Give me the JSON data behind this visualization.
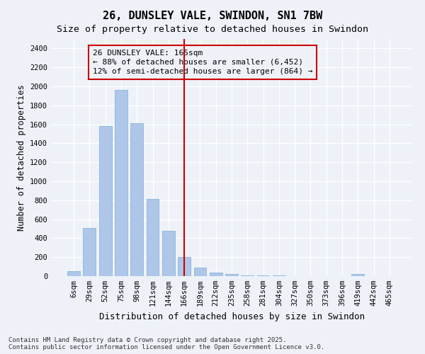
{
  "title": "26, DUNSLEY VALE, SWINDON, SN1 7BW",
  "subtitle": "Size of property relative to detached houses in Swindon",
  "xlabel": "Distribution of detached houses by size in Swindon",
  "ylabel": "Number of detached properties",
  "categories": [
    "6sqm",
    "29sqm",
    "52sqm",
    "75sqm",
    "98sqm",
    "121sqm",
    "144sqm",
    "166sqm",
    "189sqm",
    "212sqm",
    "235sqm",
    "258sqm",
    "281sqm",
    "304sqm",
    "327sqm",
    "350sqm",
    "373sqm",
    "396sqm",
    "419sqm",
    "442sqm",
    "465sqm"
  ],
  "values": [
    50,
    510,
    1585,
    1960,
    1610,
    810,
    480,
    200,
    90,
    40,
    20,
    10,
    5,
    5,
    3,
    2,
    0,
    0,
    20,
    0,
    0
  ],
  "bar_color": "#aec6e8",
  "bar_edge_color": "#7aafd4",
  "vline_x": 7,
  "vline_color": "#cc0000",
  "annotation_text": "26 DUNSLEY VALE: 165sqm\n← 88% of detached houses are smaller (6,452)\n12% of semi-detached houses are larger (864) →",
  "annotation_box_color": "#cc0000",
  "ylim": [
    0,
    2500
  ],
  "yticks": [
    0,
    200,
    400,
    600,
    800,
    1000,
    1200,
    1400,
    1600,
    1800,
    2000,
    2200,
    2400
  ],
  "background_color": "#eef2f8",
  "grid_color": "#ffffff",
  "footer": "Contains HM Land Registry data © Crown copyright and database right 2025.\nContains public sector information licensed under the Open Government Licence v3.0.",
  "title_fontsize": 11,
  "subtitle_fontsize": 9.5,
  "xlabel_fontsize": 9,
  "ylabel_fontsize": 8.5,
  "tick_fontsize": 7.5,
  "annotation_fontsize": 8,
  "footer_fontsize": 6.5
}
